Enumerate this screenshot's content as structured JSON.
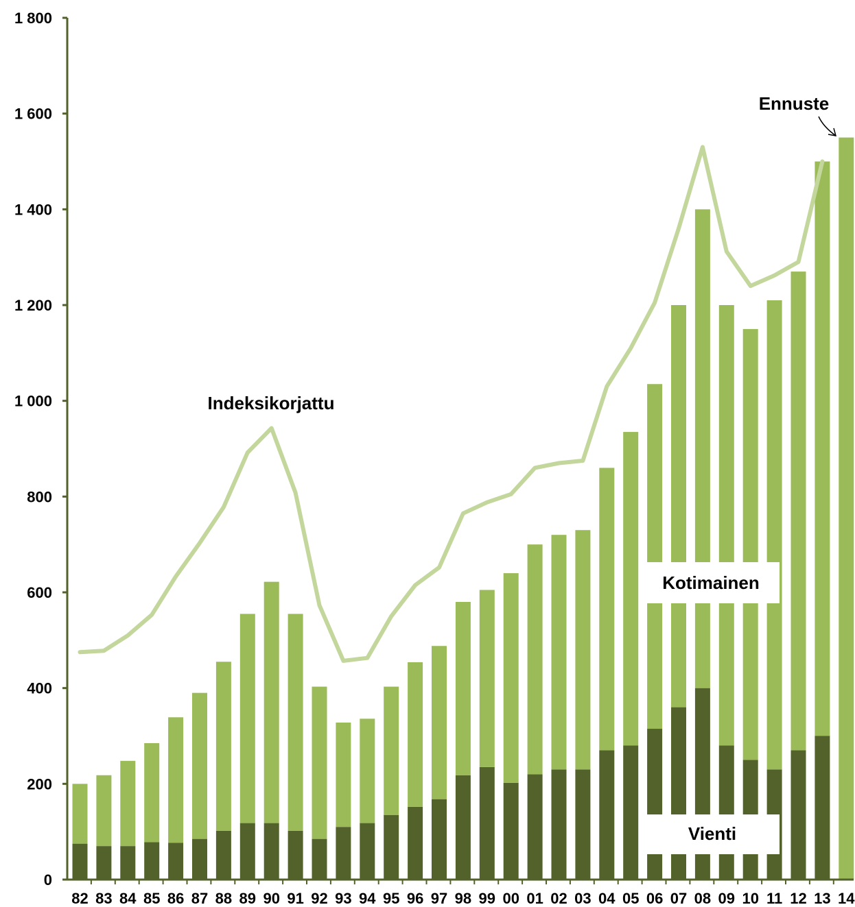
{
  "chart_data": {
    "type": "bar",
    "stacked": true,
    "title": "",
    "xlabel": "",
    "ylabel": "",
    "ylim": [
      0,
      1800
    ],
    "yticks": [
      0,
      200,
      400,
      600,
      800,
      1000,
      1200,
      1400,
      1600,
      1800
    ],
    "ytick_labels": [
      "0",
      "200",
      "400",
      "600",
      "800",
      "1 000",
      "1 200",
      "1 400",
      "1 600",
      "1 800"
    ],
    "grid": false,
    "legend": "none",
    "categories": [
      "82",
      "83",
      "84",
      "85",
      "86",
      "87",
      "88",
      "89",
      "90",
      "91",
      "92",
      "93",
      "94",
      "95",
      "96",
      "97",
      "98",
      "99",
      "00",
      "01",
      "02",
      "03",
      "04",
      "05",
      "06",
      "07",
      "08",
      "09",
      "10",
      "11",
      "12",
      "13",
      "14"
    ],
    "series": [
      {
        "name": "Vienti",
        "kind": "bar",
        "color": "#52622a",
        "values": [
          75,
          70,
          70,
          78,
          77,
          85,
          102,
          118,
          118,
          102,
          85,
          110,
          118,
          135,
          152,
          168,
          218,
          235,
          202,
          220,
          230,
          230,
          270,
          280,
          315,
          360,
          400,
          280,
          250,
          230,
          270,
          300,
          null
        ]
      },
      {
        "name": "Kotimainen",
        "kind": "bar",
        "color": "#9bbb59",
        "values": [
          125,
          148,
          178,
          207,
          262,
          305,
          353,
          437,
          504,
          453,
          318,
          218,
          218,
          268,
          302,
          320,
          362,
          370,
          438,
          480,
          490,
          500,
          590,
          655,
          720,
          840,
          1000,
          920,
          900,
          980,
          1000,
          1200,
          null
        ]
      },
      {
        "name": "Ennuste",
        "kind": "bar",
        "color": "#9bbb59",
        "values": [
          null,
          null,
          null,
          null,
          null,
          null,
          null,
          null,
          null,
          null,
          null,
          null,
          null,
          null,
          null,
          null,
          null,
          null,
          null,
          null,
          null,
          null,
          null,
          null,
          null,
          null,
          null,
          null,
          null,
          null,
          null,
          null,
          1550
        ]
      },
      {
        "name": "Indeksikorjattu",
        "kind": "line",
        "color": "#c3d69b",
        "values": [
          475,
          478,
          510,
          553,
          633,
          703,
          778,
          892,
          943,
          808,
          573,
          457,
          463,
          550,
          615,
          652,
          765,
          788,
          805,
          860,
          870,
          875,
          1030,
          1110,
          1205,
          1360,
          1530,
          1312,
          1240,
          1262,
          1290,
          1500,
          null
        ]
      }
    ],
    "annotations": {
      "indeksikorjattu": "Indeksikorjattu",
      "ennuste": "Ennuste",
      "kotimainen": "Kotimainen",
      "vienti": "Vienti"
    },
    "colors": {
      "axis": "#52622a",
      "dark_bar": "#52622a",
      "light_bar": "#9bbb59",
      "line": "#c3d69b"
    }
  }
}
